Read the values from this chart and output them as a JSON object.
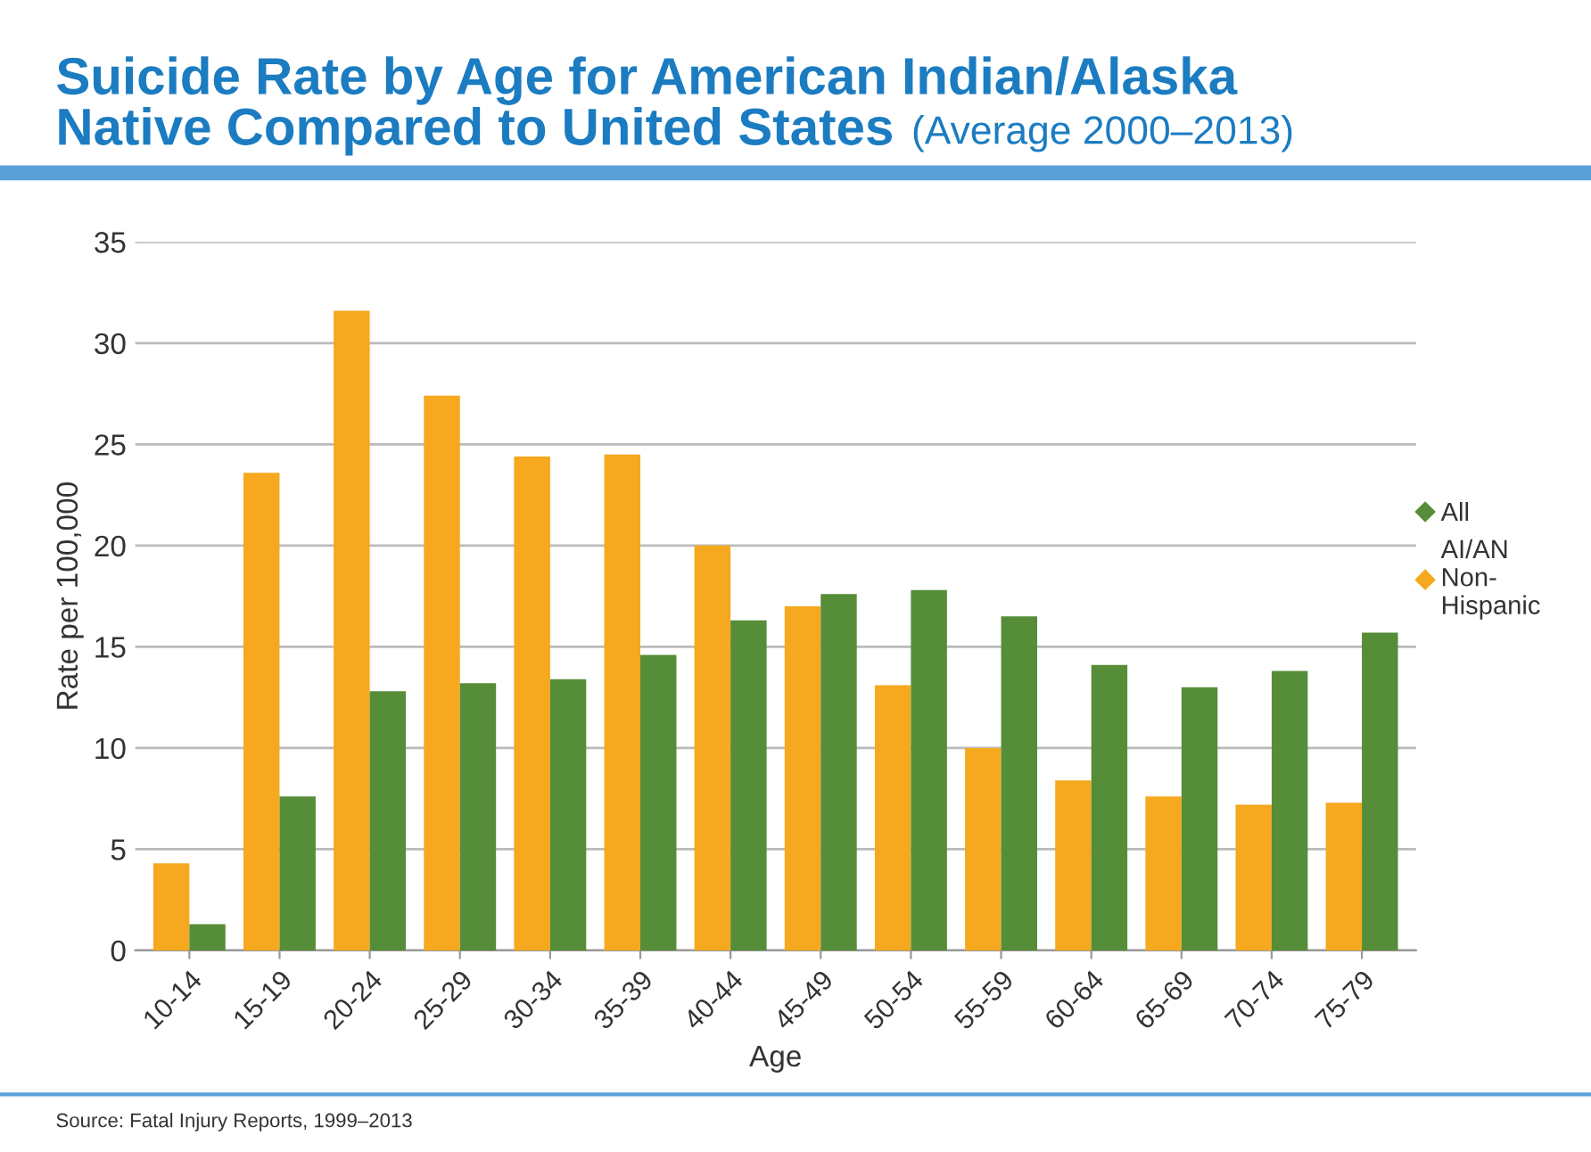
{
  "chart_data": {
    "type": "bar",
    "title": "Suicide Rate by Age for American Indian/Alaska\nNative Compared to United States",
    "subtitle": "(Average 2000–2013)",
    "xlabel": "Age",
    "ylabel": "Rate per 100,000",
    "categories": [
      "10-14",
      "15-19",
      "20-24",
      "25-29",
      "30-34",
      "35-39",
      "40-44",
      "45-49",
      "50-54",
      "55-59",
      "60-64",
      "65-69",
      "70-74",
      "75-79"
    ],
    "series": [
      {
        "name": "AI/AN\nNon-\nHispanic",
        "color": "#f6a81e",
        "values": [
          4.3,
          23.6,
          31.6,
          27.4,
          24.4,
          24.5,
          20.0,
          17.0,
          13.1,
          10.0,
          8.4,
          7.6,
          7.2,
          7.3
        ]
      },
      {
        "name": "All",
        "color": "#568d38",
        "values": [
          1.3,
          7.6,
          12.8,
          13.2,
          13.4,
          14.6,
          16.3,
          17.6,
          17.8,
          16.5,
          14.1,
          13.0,
          13.8,
          15.7
        ]
      }
    ],
    "ylim": [
      0,
      35
    ],
    "yticks": [
      0,
      5,
      10,
      15,
      20,
      25,
      30,
      35
    ],
    "grid": "y",
    "legend": "right",
    "marker": "diamond",
    "annotations": [
      "Source: Fatal Injury Reports, 1999–2013"
    ]
  }
}
